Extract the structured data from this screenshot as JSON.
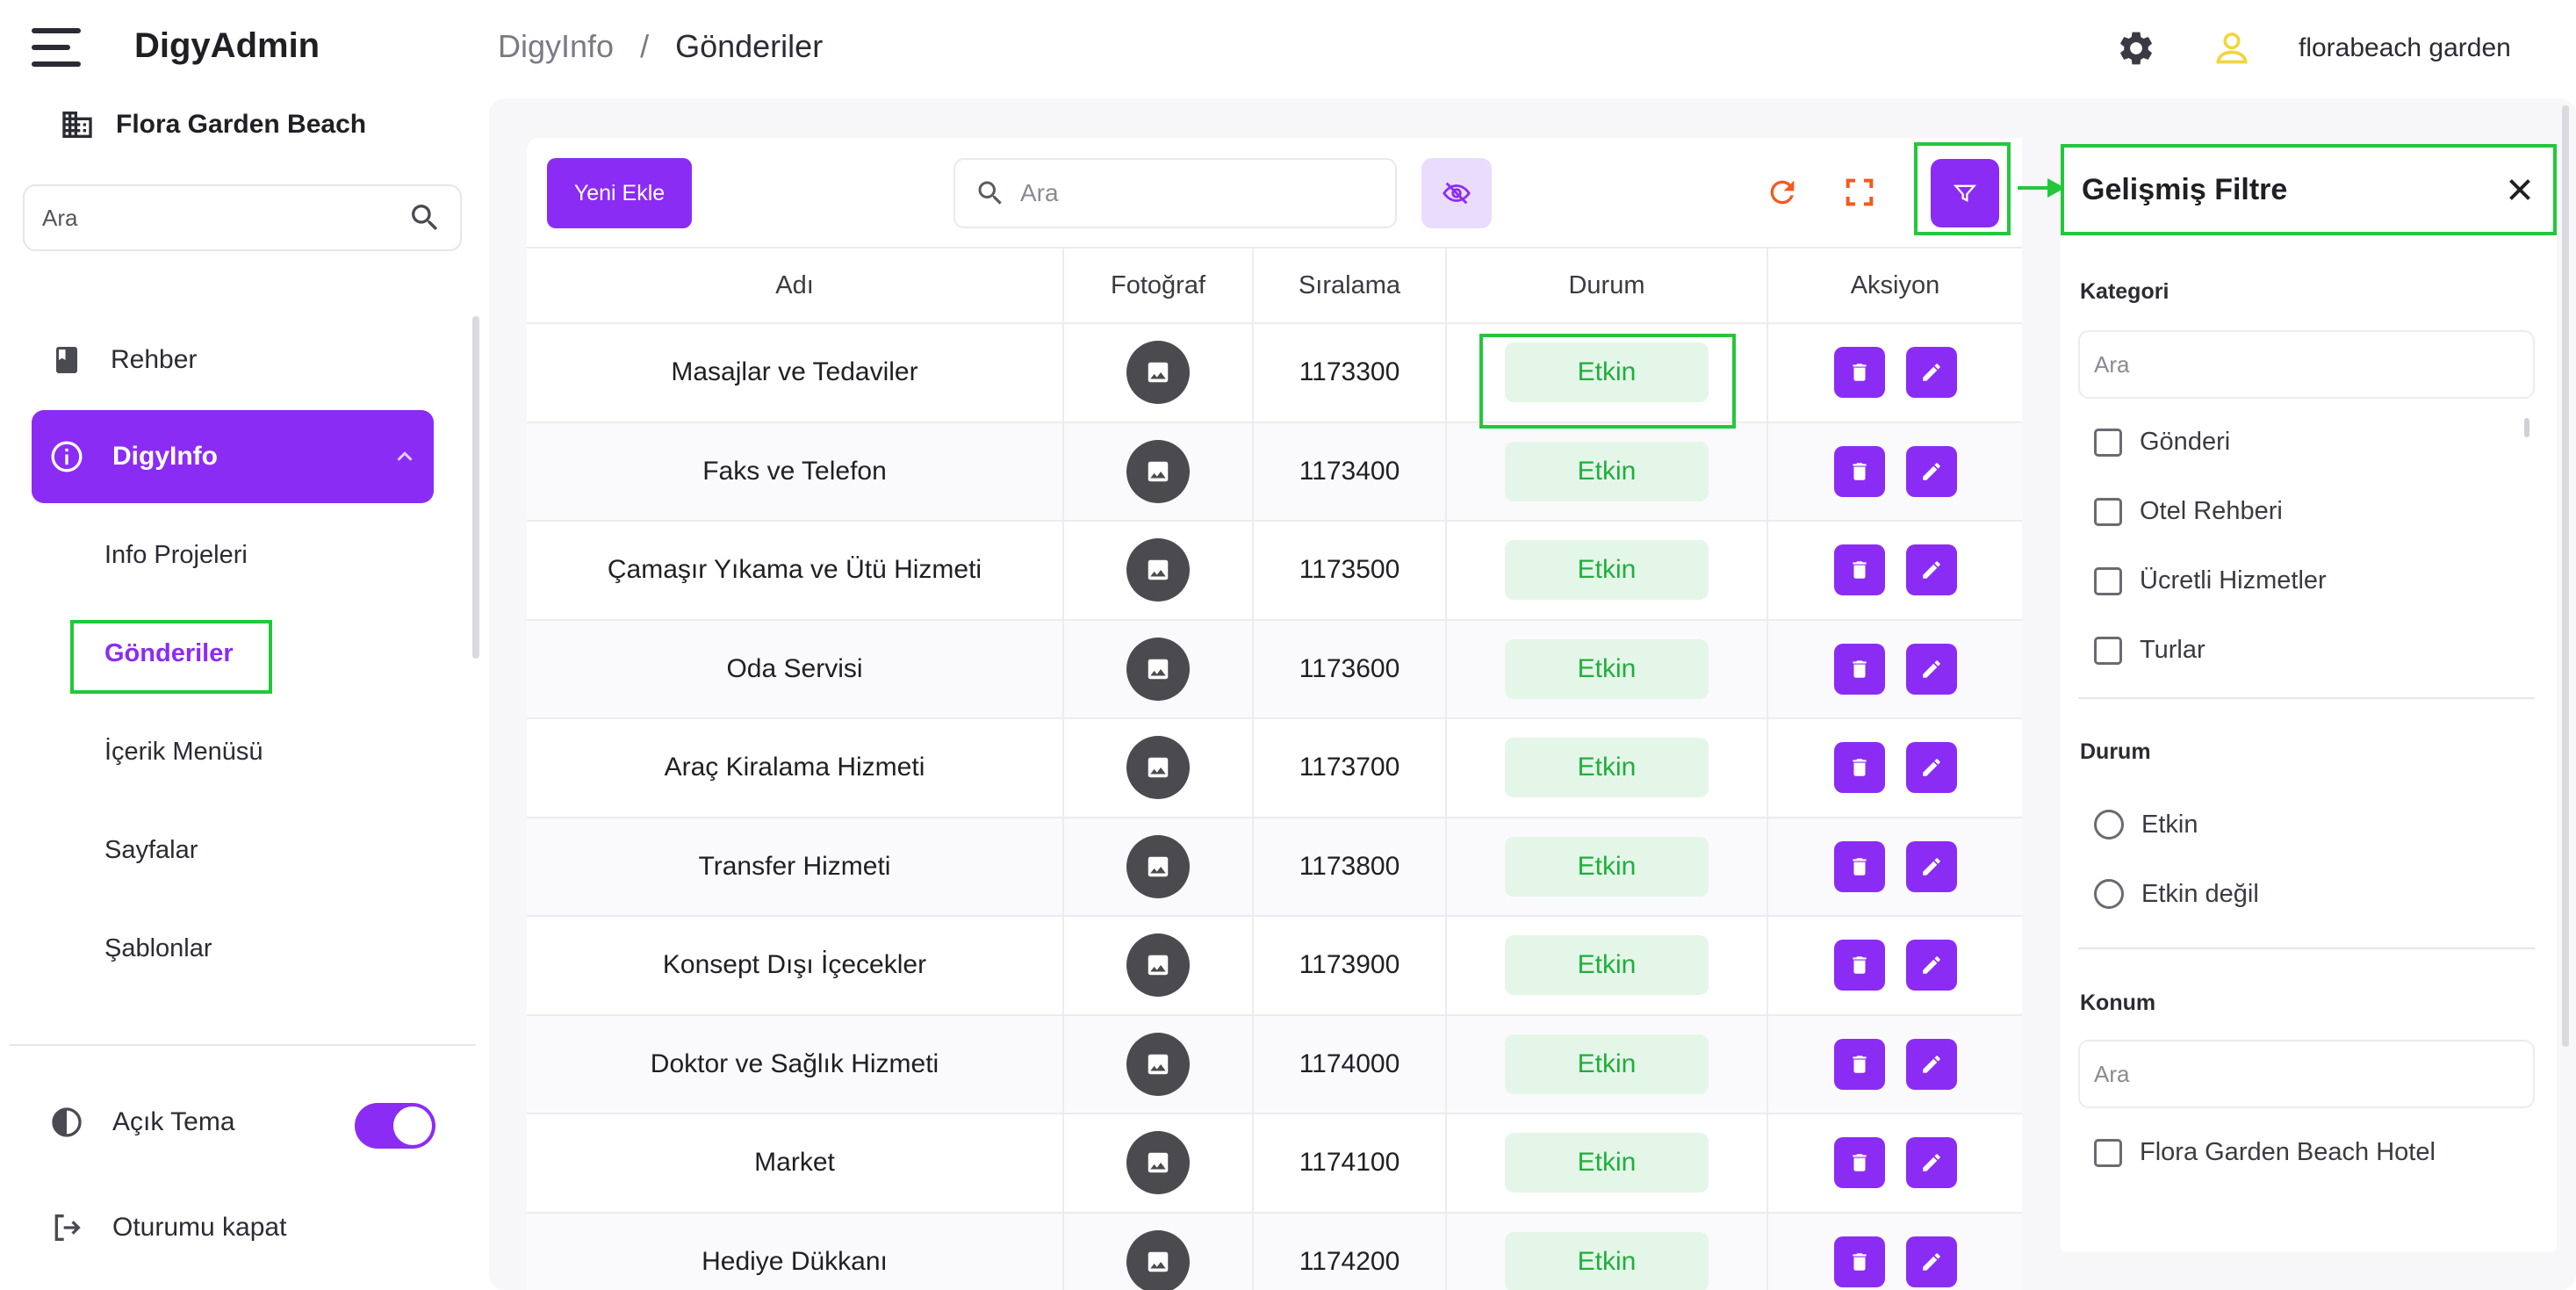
{
  "app": {
    "name": "DigyAdmin",
    "hotel": "Flora Garden Beach"
  },
  "sidebar": {
    "search_placeholder": "Ara",
    "items": [
      {
        "label": "Rehber"
      },
      {
        "label": "DigyInfo"
      }
    ],
    "sub_items": [
      "Info Projeleri",
      "Gönderiler",
      "İçerik Menüsü",
      "Sayfalar",
      "Şablonlar"
    ],
    "theme_label": "Açık Tema",
    "logout_label": "Oturumu kapat"
  },
  "header": {
    "breadcrumb_root": "DigyInfo",
    "breadcrumb_sep": "/",
    "breadcrumb_current": "Gönderiler",
    "username": "florabeach garden"
  },
  "toolbar": {
    "new_label": "Yeni Ekle",
    "search_placeholder": "Ara"
  },
  "table": {
    "columns": [
      "Adı",
      "Fotoğraf",
      "Sıralama",
      "Durum",
      "Aksiyon"
    ],
    "rows": [
      {
        "name": "Masajlar ve Tedaviler",
        "order": "1173300",
        "status": "Etkin"
      },
      {
        "name": "Faks ve Telefon",
        "order": "1173400",
        "status": "Etkin"
      },
      {
        "name": "Çamaşır Yıkama ve Ütü Hizmeti",
        "order": "1173500",
        "status": "Etkin"
      },
      {
        "name": "Oda Servisi",
        "order": "1173600",
        "status": "Etkin"
      },
      {
        "name": "Araç Kiralama Hizmeti",
        "order": "1173700",
        "status": "Etkin"
      },
      {
        "name": "Transfer Hizmeti",
        "order": "1173800",
        "status": "Etkin"
      },
      {
        "name": "Konsept Dışı İçecekler",
        "order": "1173900",
        "status": "Etkin"
      },
      {
        "name": "Doktor ve Sağlık Hizmeti",
        "order": "1174000",
        "status": "Etkin"
      },
      {
        "name": "Market",
        "order": "1174100",
        "status": "Etkin"
      },
      {
        "name": "Hediye Dükkanı",
        "order": "1174200",
        "status": "Etkin"
      }
    ]
  },
  "filter": {
    "title": "Gelişmiş Filtre",
    "category_label": "Kategori",
    "category_placeholder": "Ara",
    "categories": [
      "Gönderi",
      "Otel Rehberi",
      "Ücretli Hizmetler",
      "Turlar"
    ],
    "status_label": "Durum",
    "statuses": [
      "Etkin",
      "Etkin değil"
    ],
    "location_label": "Konum",
    "location_placeholder": "Ara",
    "locations": [
      "Flora Garden Beach Hotel"
    ]
  },
  "colors": {
    "accent": "#8b2cf5",
    "highlight": "#22c83a",
    "status_text": "#1fae3c",
    "status_bg": "#e4f6e8"
  }
}
